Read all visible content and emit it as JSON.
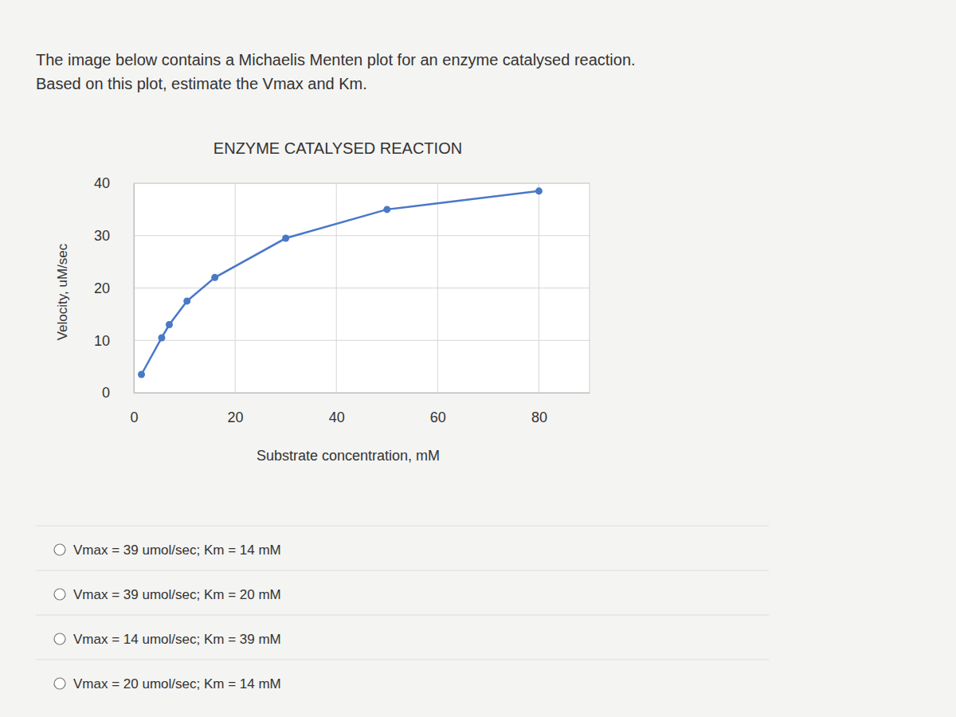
{
  "question": [
    "The image below contains a Michaelis Menten plot for an enzyme catalysed reaction.",
    "Based on this plot, estimate the Vmax and Km."
  ],
  "chart_data": {
    "type": "line",
    "title": "ENZYME CATALYSED REACTION",
    "x_label": "Substrate concentration, mM",
    "y_label": "Velocity, uM/sec",
    "x": [
      1.5,
      5.5,
      7,
      10.5,
      16,
      30,
      50,
      80
    ],
    "values": [
      3.5,
      10.5,
      13,
      17.5,
      22,
      29.5,
      35,
      38.5
    ],
    "color": "#4a78c8",
    "marker": "circle",
    "xlim": [
      0,
      90
    ],
    "ylim": [
      0,
      40
    ],
    "xticks": [
      0,
      20,
      40,
      60,
      80
    ],
    "yticks": [
      0,
      10,
      20,
      30,
      40
    ],
    "grid": true
  },
  "options": [
    "Vmax = 39 umol/sec; Km = 14 mM",
    "Vmax = 39 umol/sec; Km = 20 mM",
    "Vmax = 14 umol/sec; Km = 39 mM",
    "Vmax = 20 umol/sec; Km = 14 mM"
  ]
}
